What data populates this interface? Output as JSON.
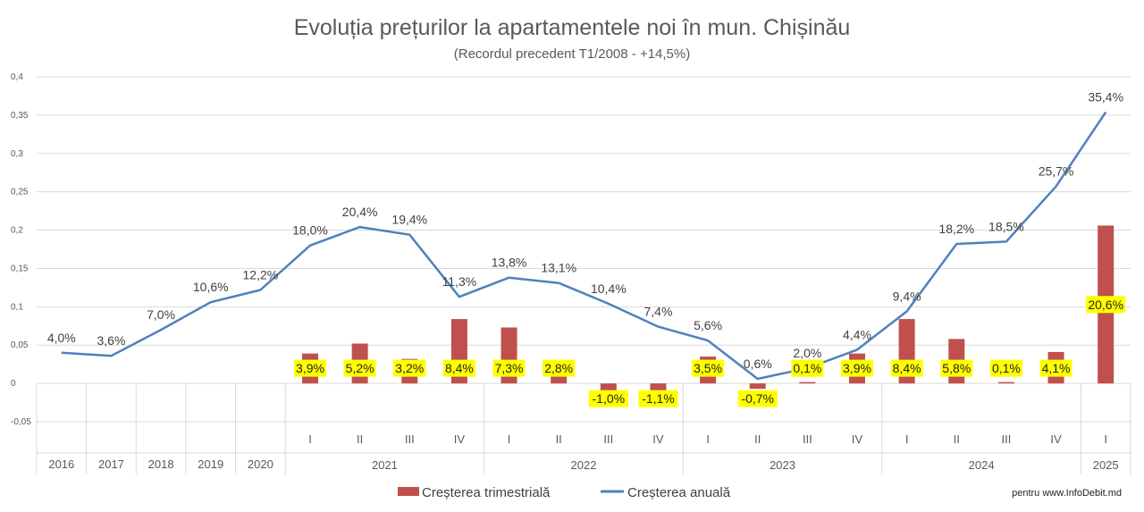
{
  "chart_data": {
    "type": "bar+line",
    "title": "Evoluția prețurilor la apartamentele noi în mun. Chișinău",
    "subtitle": "(Recordul precedent T1/2008 - +14,5%)",
    "y_axis": {
      "min": -0.05,
      "max": 0.4,
      "step": 0.05,
      "tick_labels": [
        "-0,05",
        "0",
        "0,05",
        "0,1",
        "0,15",
        "0,2",
        "0,25",
        "0,3",
        "0,35",
        "0,4"
      ]
    },
    "categories": [
      {
        "label": "",
        "year": "2016"
      },
      {
        "label": "",
        "year": "2017"
      },
      {
        "label": "",
        "year": "2018"
      },
      {
        "label": "",
        "year": "2019"
      },
      {
        "label": "",
        "year": "2020"
      },
      {
        "label": "I",
        "year": "2021"
      },
      {
        "label": "II",
        "year": "2021"
      },
      {
        "label": "III",
        "year": "2021"
      },
      {
        "label": "IV",
        "year": "2021"
      },
      {
        "label": "I",
        "year": "2022"
      },
      {
        "label": "II",
        "year": "2022"
      },
      {
        "label": "III",
        "year": "2022"
      },
      {
        "label": "IV",
        "year": "2022"
      },
      {
        "label": "I",
        "year": "2023"
      },
      {
        "label": "II",
        "year": "2023"
      },
      {
        "label": "III",
        "year": "2023"
      },
      {
        "label": "IV",
        "year": "2023"
      },
      {
        "label": "I",
        "year": "2024"
      },
      {
        "label": "II",
        "year": "2024"
      },
      {
        "label": "III",
        "year": "2024"
      },
      {
        "label": "IV",
        "year": "2024"
      },
      {
        "label": "I",
        "year": "2025"
      }
    ],
    "years": [
      {
        "label": "2016",
        "from": 0,
        "to": 0
      },
      {
        "label": "2017",
        "from": 1,
        "to": 1
      },
      {
        "label": "2018",
        "from": 2,
        "to": 2
      },
      {
        "label": "2019",
        "from": 3,
        "to": 3
      },
      {
        "label": "2020",
        "from": 4,
        "to": 4
      },
      {
        "label": "2021",
        "from": 5,
        "to": 8
      },
      {
        "label": "2022",
        "from": 9,
        "to": 12
      },
      {
        "label": "2023",
        "from": 13,
        "to": 16
      },
      {
        "label": "2024",
        "from": 17,
        "to": 20
      },
      {
        "label": "2025",
        "from": 21,
        "to": 21
      }
    ],
    "series": [
      {
        "name": "Creșterea trimestrială",
        "type": "bar",
        "color": "#C0504D",
        "values": [
          null,
          null,
          null,
          null,
          null,
          0.039,
          0.052,
          0.032,
          0.084,
          0.073,
          0.028,
          -0.01,
          -0.011,
          0.035,
          -0.007,
          0.001,
          0.039,
          0.084,
          0.058,
          0.001,
          0.041,
          0.206
        ],
        "labels": [
          null,
          null,
          null,
          null,
          null,
          "3,9%",
          "5,2%",
          "3,2%",
          "8,4%",
          "7,3%",
          "2,8%",
          "-1,0%",
          "-1,1%",
          "3,5%",
          "-0,7%",
          "0,1%",
          "3,9%",
          "8,4%",
          "5,8%",
          "0,1%",
          "4,1%",
          "20,6%"
        ],
        "label_highlight": "#FFFF00"
      },
      {
        "name": "Creșterea anuală",
        "type": "line",
        "color": "#4F81BD",
        "values": [
          0.04,
          0.036,
          0.07,
          0.106,
          0.122,
          0.18,
          0.204,
          0.194,
          0.113,
          0.138,
          0.131,
          0.104,
          0.074,
          0.056,
          0.006,
          0.02,
          0.044,
          0.094,
          0.182,
          0.185,
          0.257,
          0.354
        ],
        "labels": [
          "4,0%",
          "3,6%",
          "7,0%",
          "10,6%",
          "12,2%",
          "18,0%",
          "20,4%",
          "19,4%",
          "11,3%",
          "13,8%",
          "13,1%",
          "10,4%",
          "7,4%",
          "5,6%",
          "0,6%",
          "2,0%",
          "4,4%",
          "9,4%",
          "18,2%",
          "18,5%",
          "25,7%",
          "35,4%"
        ]
      }
    ],
    "grid": true,
    "legend_position": "bottom"
  },
  "credit": "pentru www.InfoDebit.md"
}
